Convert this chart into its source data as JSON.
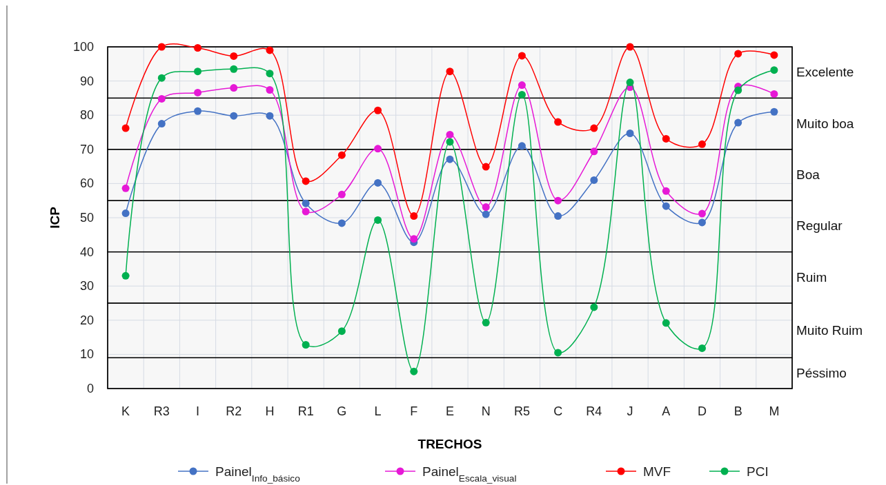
{
  "chart_data": {
    "type": "line",
    "xlabel": "TRECHOS",
    "ylabel": "ICP",
    "categories": [
      "K",
      "R3",
      "I",
      "R2",
      "H",
      "R1",
      "G",
      "L",
      "F",
      "E",
      "N",
      "R5",
      "C",
      "R4",
      "J",
      "A",
      "D",
      "B",
      "M"
    ],
    "series": [
      {
        "name": "Painel$_{Info_básico}$",
        "color": "#4472c4",
        "values": [
          51.3,
          77.5,
          81.2,
          79.8,
          79.8,
          54.2,
          48.4,
          60.2,
          42.8,
          67.1,
          51,
          71,
          50.5,
          61,
          74.7,
          53.4,
          48.6,
          77.8,
          81
        ]
      },
      {
        "name": "Painel$_{Escala_visual}$",
        "color": "#e619d6",
        "values": [
          58.6,
          84.8,
          86.6,
          88,
          87.4,
          51.8,
          56.8,
          70.2,
          43.8,
          74.3,
          53.1,
          88.8,
          55,
          69.4,
          88.2,
          57.8,
          51.2,
          88.4,
          86.2
        ]
      },
      {
        "name": "MVF",
        "color": "#ff0000",
        "values": [
          76.2,
          100,
          99.7,
          97.3,
          99,
          60.7,
          68.3,
          81.4,
          50.5,
          92.8,
          64.9,
          97.4,
          78,
          76.2,
          100,
          73.1,
          71.5,
          98,
          97.6
        ]
      },
      {
        "name": "PCI",
        "color": "#00b050",
        "values": [
          33,
          90.9,
          92.8,
          93.5,
          92.2,
          12.8,
          16.8,
          49.3,
          5,
          72.2,
          19.3,
          86,
          10.5,
          23.8,
          89.6,
          19.2,
          11.8,
          87.3,
          93.2
        ]
      }
    ],
    "ylim": [
      0,
      100
    ],
    "yticks": [
      0,
      10,
      20,
      30,
      40,
      50,
      60,
      70,
      80,
      90,
      100
    ],
    "bands": [
      {
        "axis": "y",
        "from": 85,
        "to": 100,
        "label": "Excelente",
        "color": "#000000"
      },
      {
        "axis": "y",
        "from": 70,
        "to": 85,
        "label": "Muito boa",
        "color": "#000000"
      },
      {
        "axis": "y",
        "from": 55,
        "to": 70,
        "label": "Boa",
        "color": "#000000"
      },
      {
        "axis": "y",
        "from": 40,
        "to": 55,
        "label": "Regular",
        "color": "#000000"
      },
      {
        "axis": "y",
        "from": 25,
        "to": 40,
        "label": "Ruim",
        "color": "#000000"
      },
      {
        "axis": "y",
        "from": 9,
        "to": 25,
        "label": "Muito Ruim",
        "color": "#000000"
      },
      {
        "axis": "y",
        "from": 0,
        "to": 9,
        "label": "Péssimo",
        "color": "#000000"
      }
    ],
    "grid": true,
    "legend": "bottom",
    "marker": "circle",
    "line_style": "solid"
  }
}
